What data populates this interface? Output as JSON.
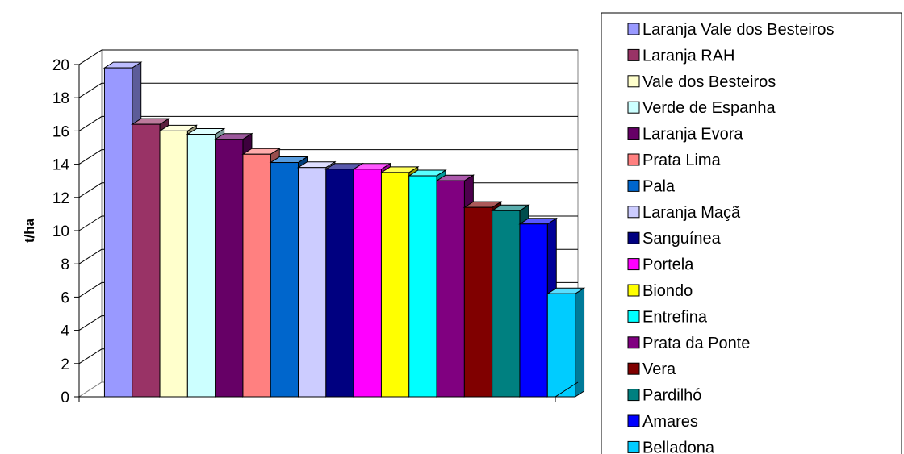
{
  "chart_data": {
    "type": "bar",
    "title": "",
    "xlabel": "",
    "ylabel": "t/ha",
    "ylim": [
      0,
      20
    ],
    "yticks": [
      0,
      2,
      4,
      6,
      8,
      10,
      12,
      14,
      16,
      18,
      20
    ],
    "grid": true,
    "legend_position": "right",
    "three_d": true,
    "series": [
      {
        "name": "Laranja Vale dos Besteiros",
        "value": 19.8,
        "color": "#9999FF"
      },
      {
        "name": "Laranja RAH",
        "value": 16.4,
        "color": "#993366"
      },
      {
        "name": "Vale dos Besteiros",
        "value": 16.0,
        "color": "#FFFFCC"
      },
      {
        "name": "Verde de Espanha",
        "value": 15.8,
        "color": "#CCFFFF"
      },
      {
        "name": "Laranja Evora",
        "value": 15.5,
        "color": "#660066"
      },
      {
        "name": "Prata Lima",
        "value": 14.6,
        "color": "#FF8080"
      },
      {
        "name": "Pala",
        "value": 14.1,
        "color": "#0066CC"
      },
      {
        "name": "Laranja Maçã",
        "value": 13.8,
        "color": "#CCCCFF"
      },
      {
        "name": "Sanguínea",
        "value": 13.7,
        "color": "#000080"
      },
      {
        "name": "Portela",
        "value": 13.7,
        "color": "#FF00FF"
      },
      {
        "name": "Biondo",
        "value": 13.5,
        "color": "#FFFF00"
      },
      {
        "name": "Entrefina",
        "value": 13.3,
        "color": "#00FFFF"
      },
      {
        "name": "Prata da Ponte",
        "value": 13.0,
        "color": "#800080"
      },
      {
        "name": "Vera",
        "value": 11.4,
        "color": "#800000"
      },
      {
        "name": "Pardilhó",
        "value": 11.2,
        "color": "#008080"
      },
      {
        "name": "Amares",
        "value": 10.4,
        "color": "#0000FF"
      },
      {
        "name": "Belladona",
        "value": 6.2,
        "color": "#00CCFF"
      }
    ]
  }
}
